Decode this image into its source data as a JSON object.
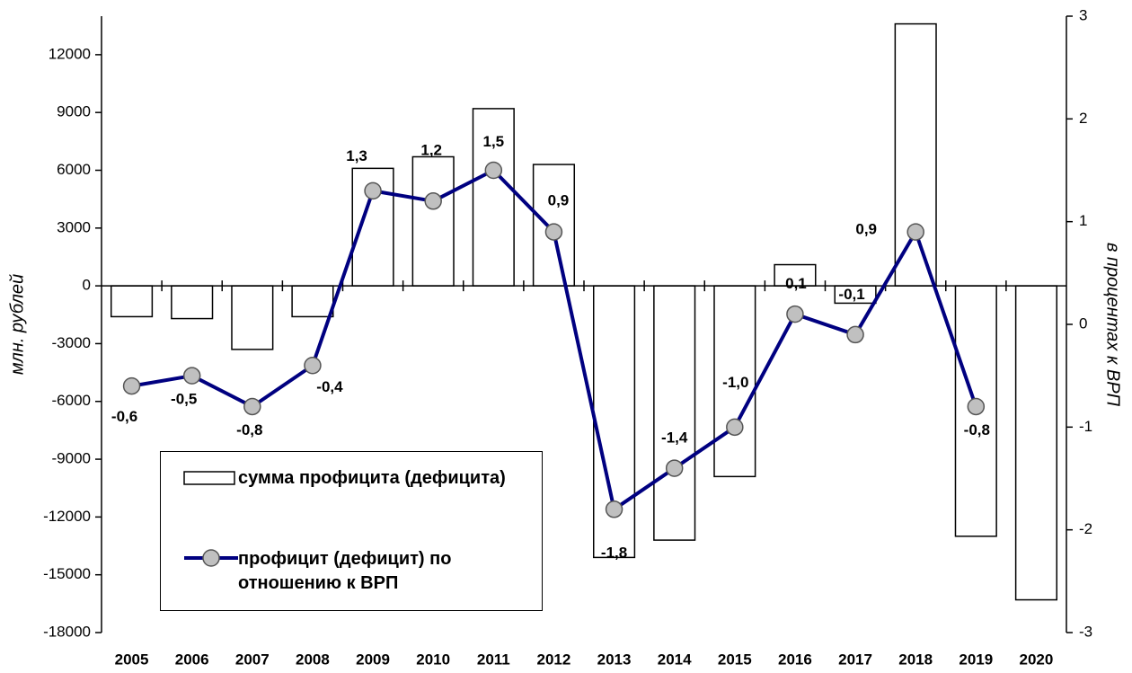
{
  "chart_data": {
    "type": "bar-line",
    "categories": [
      "2005",
      "2006",
      "2007",
      "2008",
      "2009",
      "2010",
      "2011",
      "2012",
      "2013",
      "2014",
      "2015",
      "2016",
      "2017",
      "2018",
      "2019",
      "2020"
    ],
    "ylabel": "млн. рублей",
    "y2label": "в процентах к ВРП",
    "ylim": [
      -18000,
      14000
    ],
    "yticks": [
      -18000,
      -15000,
      -12000,
      -9000,
      -6000,
      -3000,
      0,
      3000,
      6000,
      9000,
      12000
    ],
    "y2lim": [
      -3,
      3
    ],
    "y2ticks": [
      -3,
      -2,
      -1,
      0,
      1,
      2,
      3
    ],
    "legend": "bottom-left",
    "series": [
      {
        "name": "сумма профицита (дефицита)",
        "type": "bar",
        "color": "#ffffff",
        "values": [
          -1600,
          -1700,
          -3300,
          -1600,
          6100,
          6700,
          9200,
          6300,
          -14100,
          -13200,
          -9900,
          1100,
          -900,
          13600,
          -13000,
          -16300
        ]
      },
      {
        "name": "профицит (дефицит) по отношению к ВРП",
        "type": "line",
        "axis": "y2",
        "color": "#000080",
        "values": [
          -0.6,
          -0.5,
          -0.8,
          -0.4,
          1.3,
          1.2,
          1.5,
          0.9,
          -1.8,
          -1.4,
          -1.0,
          0.1,
          -0.1,
          0.9,
          -0.8,
          null
        ],
        "value_labels": [
          "-0,6",
          "-0,5",
          "-0,8",
          "-0,4",
          "1,3",
          "1,2",
          "1,5",
          "0,9",
          "-1,8",
          "-1,4",
          "-1,0",
          "0,1",
          "-0,1",
          "0,9",
          "-0,8",
          null
        ]
      }
    ]
  }
}
